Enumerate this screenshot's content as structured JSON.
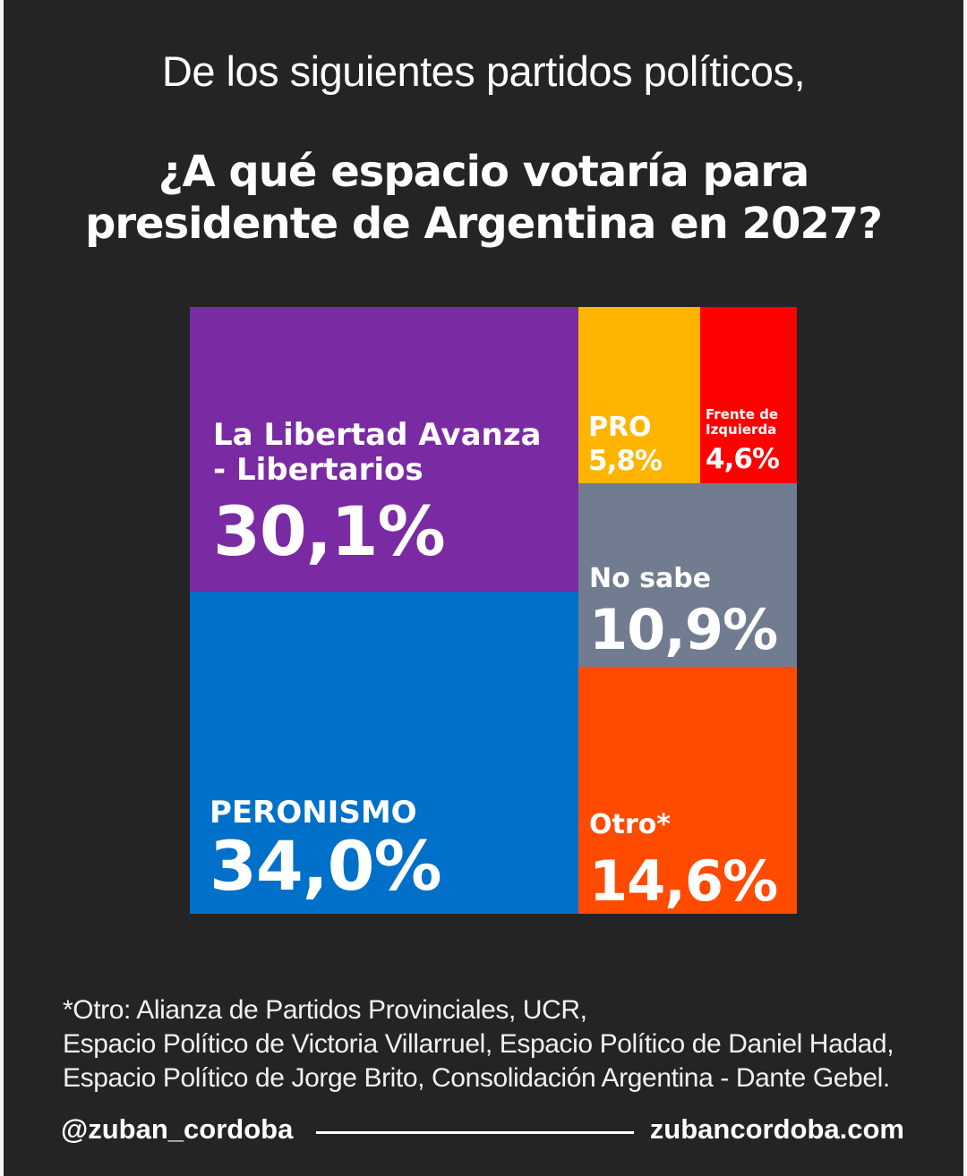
{
  "header": {
    "subtitle": "De los siguientes partidos políticos,",
    "question_line1": "¿A qué espacio votaría para",
    "question_line2": "presidente de Argentina en 2027?"
  },
  "chart_data": {
    "type": "treemap",
    "items": [
      {
        "label": "La Libertad Avanza - Libertarios",
        "label_lines": [
          "La Libertad Avanza",
          "- Libertarios"
        ],
        "value": 30.1,
        "display": "30,1%",
        "color": "#7a2ba3"
      },
      {
        "label": "PERONISMO",
        "label_lines": [
          "PERONISMO"
        ],
        "value": 34.0,
        "display": "34,0%",
        "color": "#0070c8"
      },
      {
        "label": "PRO",
        "label_lines": [
          "PRO"
        ],
        "value": 5.8,
        "display": "5,8%",
        "color": "#ffb400"
      },
      {
        "label": "Frente de Izquierda",
        "label_lines": [
          "Frente de",
          "Izquierda"
        ],
        "value": 4.6,
        "display": "4,6%",
        "color": "#ff0000"
      },
      {
        "label": "No sabe",
        "label_lines": [
          "No sabe"
        ],
        "value": 10.9,
        "display": "10,9%",
        "color": "#717c91"
      },
      {
        "label": "Otro*",
        "label_lines": [
          "Otro*"
        ],
        "value": 14.6,
        "display": "14,6%",
        "color": "#ff4b00"
      }
    ]
  },
  "footnote": {
    "lines": [
      "*Otro: Alianza de Partidos Provinciales, UCR,",
      "Espacio Político de Victoria Villarruel, Espacio Político de Daniel Hadad,",
      "Espacio Político de Jorge Brito, Consolidación Argentina - Dante Gebel."
    ]
  },
  "footer": {
    "handle": "@zuban_cordoba",
    "website": "zubancordoba.com"
  }
}
